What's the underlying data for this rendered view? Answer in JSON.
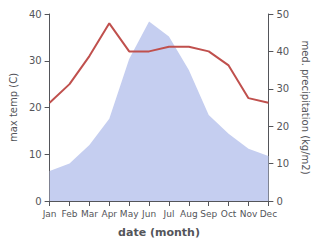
{
  "chart_data": {
    "type": "line",
    "xlabel": "date (month)",
    "ylabel": "max temp (C)",
    "y2label": "med. precipitation (kg/m2)",
    "categories": [
      "Jan",
      "Feb",
      "Mar",
      "Apr",
      "May",
      "Jun",
      "Jul",
      "Aug",
      "Sep",
      "Oct",
      "Nov",
      "Dec"
    ],
    "series": [
      {
        "type": "area",
        "axis": "y2",
        "color": "#c5cef0",
        "values": [
          8,
          10,
          15,
          22,
          38,
          48,
          44,
          35,
          23,
          18,
          14,
          12
        ]
      },
      {
        "type": "line",
        "color": "#c0504d",
        "values": [
          21,
          25,
          31,
          38,
          32,
          32,
          33,
          33,
          32,
          29,
          22,
          21
        ]
      }
    ],
    "ylim": [
      0,
      40
    ],
    "yticks": [
      0,
      10,
      20,
      30,
      40
    ],
    "y2lim": [
      0,
      50
    ],
    "y2ticks": [
      0,
      10,
      20,
      30,
      40,
      50
    ],
    "grid": false
  }
}
